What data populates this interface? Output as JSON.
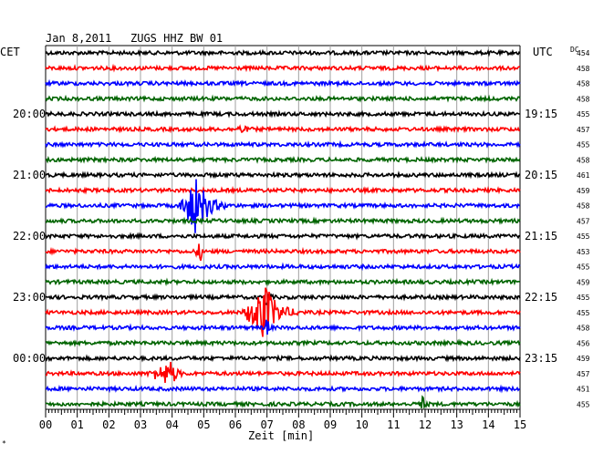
{
  "header": {
    "date": "Jan 8,2011",
    "station": "ZUGS HHZ BW 01",
    "left_label": "CET",
    "right_label": "UTC",
    "dc_label": "DC"
  },
  "footer": {
    "xlabel": "Zeit [min]",
    "corner_mark": "*"
  },
  "colors": [
    "#000000",
    "#ff0000",
    "#0000ff",
    "#006400"
  ],
  "chart_data": {
    "type": "line",
    "title": "Jan 8,2011   ZUGS HHZ BW 01",
    "xlabel": "Zeit [min]",
    "xlim": [
      0,
      15
    ],
    "x_ticks": [
      "00",
      "01",
      "02",
      "03",
      "04",
      "05",
      "06",
      "07",
      "08",
      "09",
      "10",
      "11",
      "12",
      "13",
      "14",
      "15"
    ],
    "row_count": 24,
    "left_time_labels": [
      {
        "row": 4,
        "label": "20:00"
      },
      {
        "row": 8,
        "label": "21:00"
      },
      {
        "row": 12,
        "label": "22:00"
      },
      {
        "row": 16,
        "label": "23:00"
      },
      {
        "row": 20,
        "label": "00:00"
      }
    ],
    "right_time_labels": [
      {
        "row": 4,
        "label": "19:15"
      },
      {
        "row": 8,
        "label": "20:15"
      },
      {
        "row": 12,
        "label": "21:15"
      },
      {
        "row": 16,
        "label": "22:15"
      },
      {
        "row": 20,
        "label": "23:15"
      }
    ],
    "dc_values": [
      "454",
      "458",
      "458",
      "458",
      "455",
      "457",
      "455",
      "458",
      "461",
      "459",
      "458",
      "457",
      "455",
      "453",
      "455",
      "459",
      "455",
      "455",
      "458",
      "456",
      "459",
      "457",
      "451",
      "455"
    ],
    "events": [
      {
        "row": 10,
        "onset_min": 4.2,
        "peak_min": 4.8,
        "duration_min": 1.6,
        "amplitude": 3.2
      },
      {
        "row": 13,
        "onset_min": 4.7,
        "peak_min": 4.9,
        "duration_min": 0.3,
        "amplitude": 1.0
      },
      {
        "row": 17,
        "onset_min": 6.2,
        "peak_min": 6.95,
        "duration_min": 1.9,
        "amplitude": 3.0
      },
      {
        "row": 16,
        "onset_min": 6.9,
        "peak_min": 7.0,
        "duration_min": 0.3,
        "amplitude": 1.2
      },
      {
        "row": 18,
        "onset_min": 6.9,
        "peak_min": 7.0,
        "duration_min": 0.3,
        "amplitude": 1.1
      },
      {
        "row": 21,
        "onset_min": 3.2,
        "peak_min": 4.0,
        "duration_min": 1.2,
        "amplitude": 1.3
      },
      {
        "row": 23,
        "onset_min": 11.75,
        "peak_min": 11.9,
        "duration_min": 0.4,
        "amplitude": 0.9
      },
      {
        "row": 5,
        "onset_min": 6.0,
        "peak_min": 6.2,
        "duration_min": 0.6,
        "amplitude": 0.35
      }
    ]
  }
}
